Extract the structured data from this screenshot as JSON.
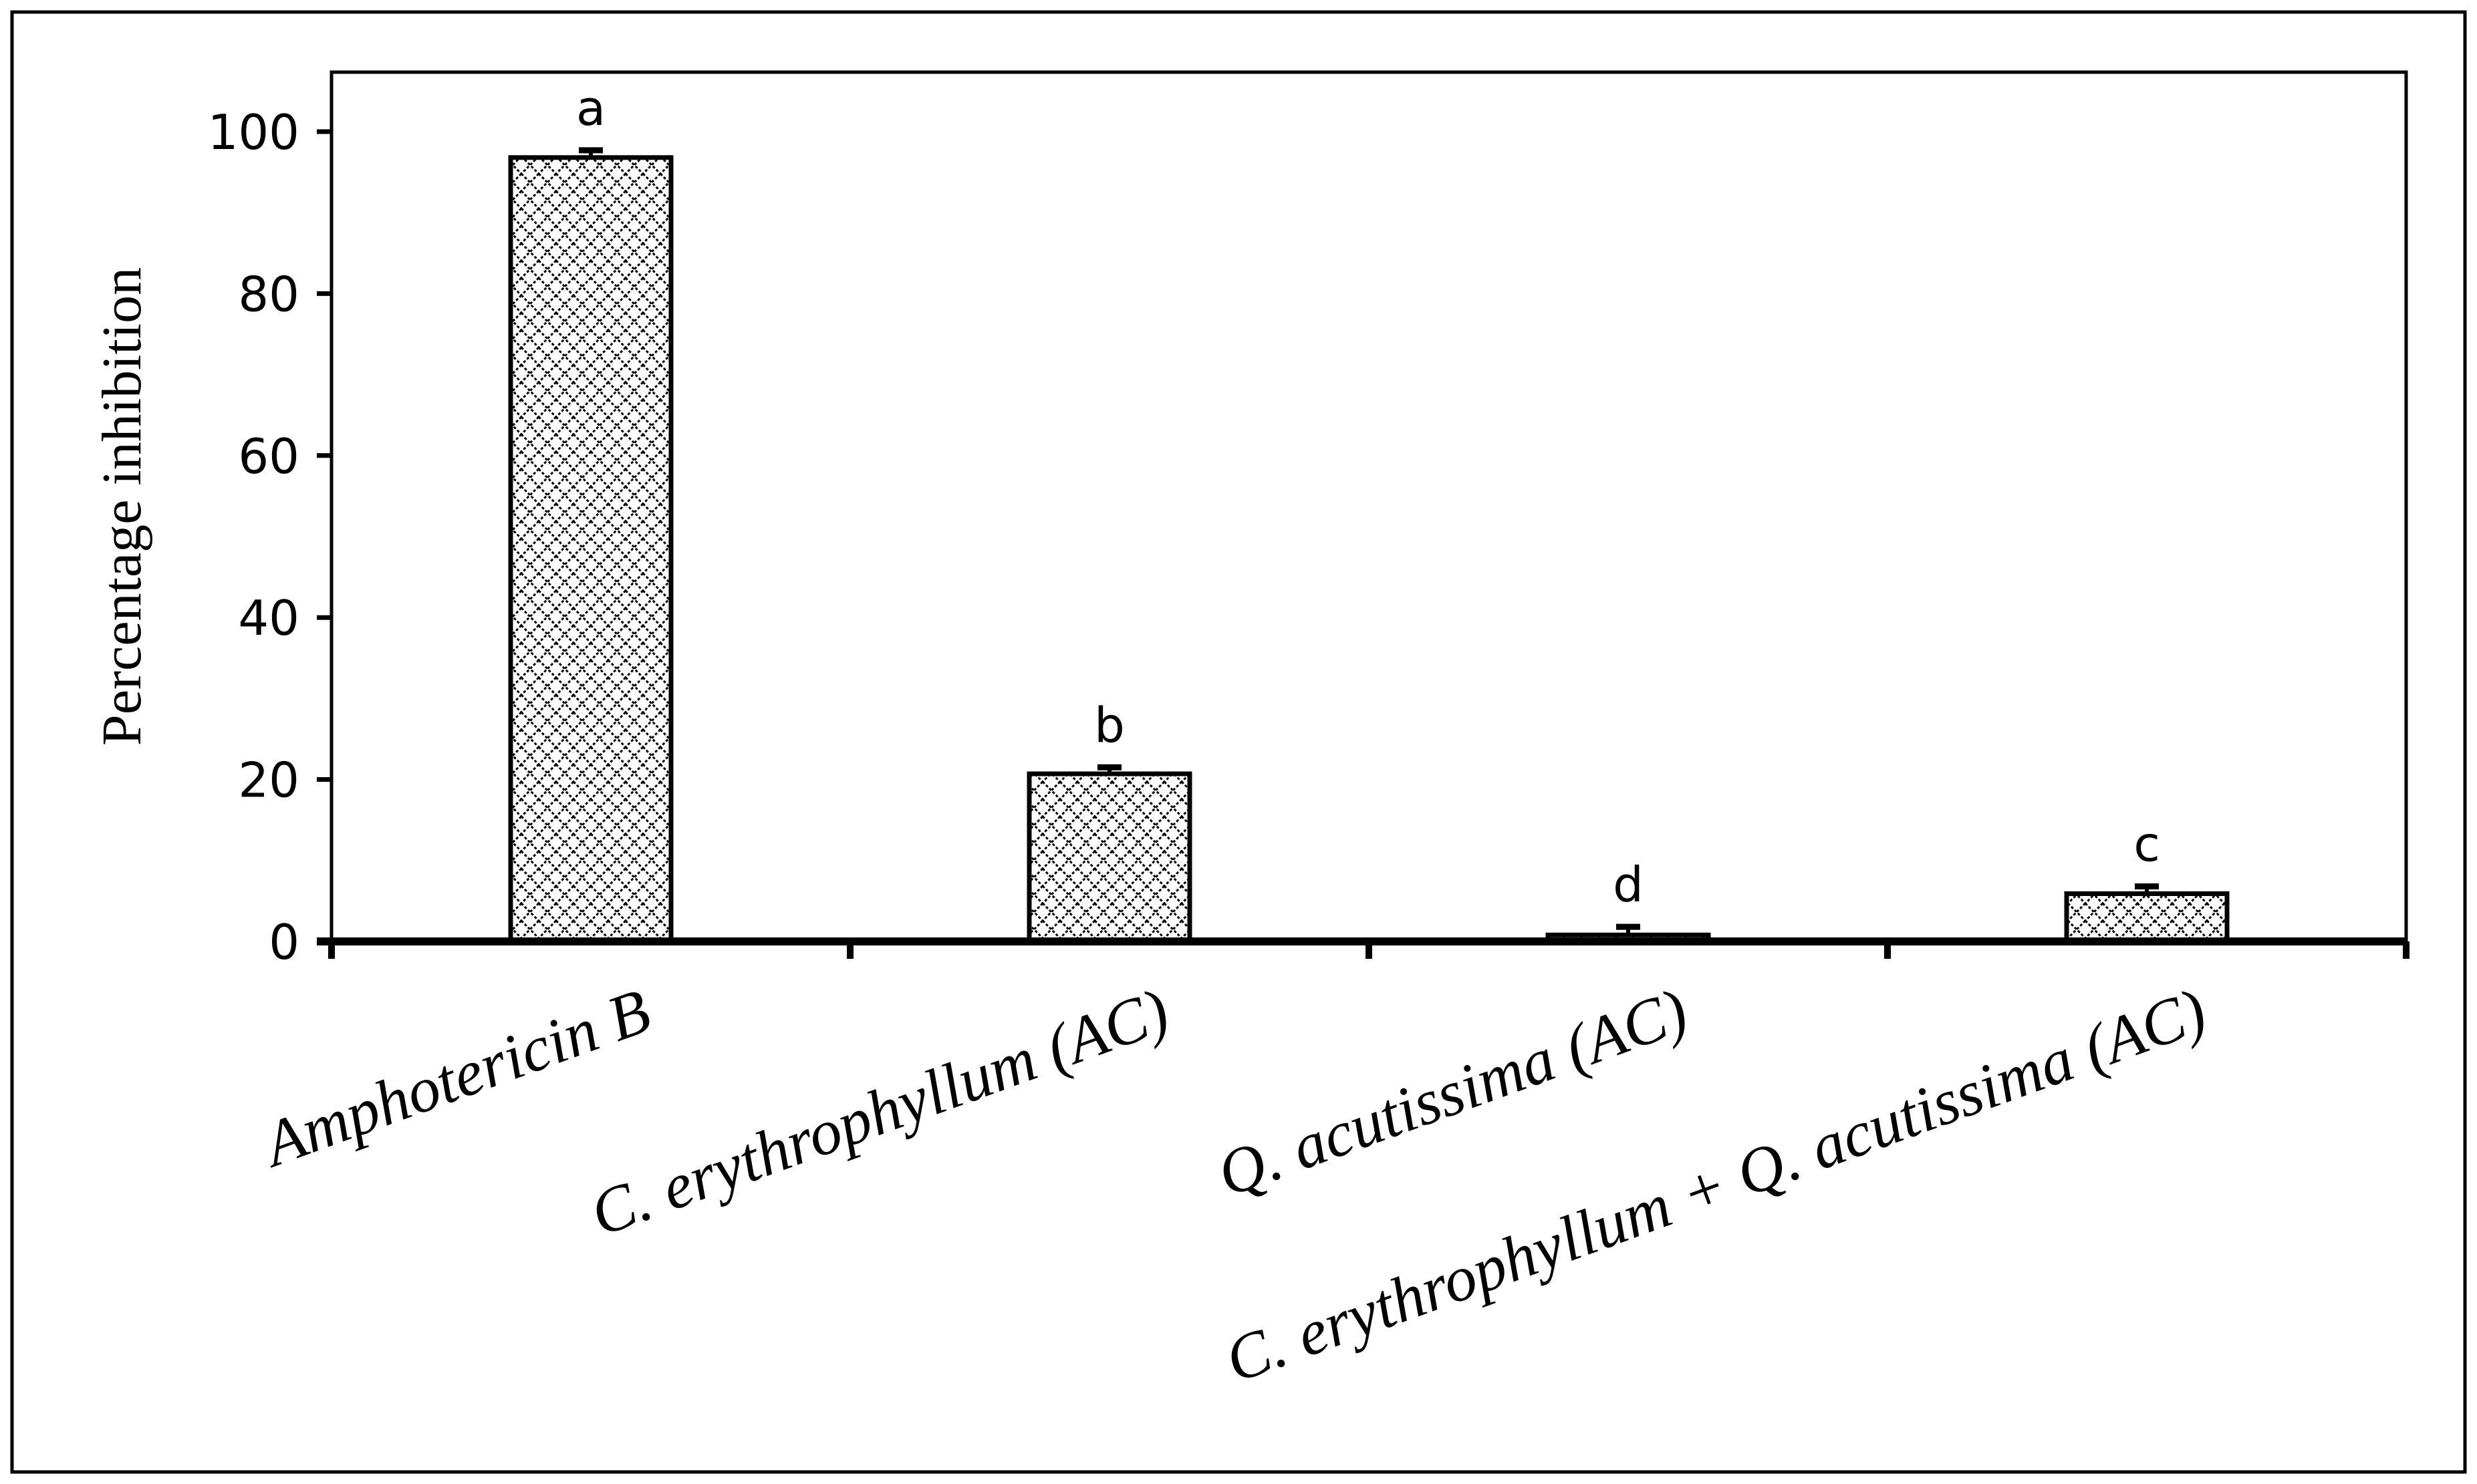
{
  "chart_data": {
    "type": "bar",
    "title": "",
    "xlabel": "",
    "ylabel": "Percentage inhibition",
    "ylim": [
      0,
      100
    ],
    "yticks": [
      0,
      20,
      40,
      60,
      80,
      100
    ],
    "grid": false,
    "legend": "none",
    "categories": [
      "Amphotericin B",
      "C. erythrophyllum (AC)",
      "Q. acutissima (AC)",
      "C. erythrophyllum + Q. acutissima (AC)"
    ],
    "values": [
      96.8,
      20.7,
      0.8,
      5.9
    ],
    "error": [
      0.9,
      0.8,
      1.0,
      0.9
    ],
    "significance_letters": [
      "a",
      "b",
      "d",
      "c"
    ],
    "bar_fill": "cross-hatch",
    "bar_color": "#000000",
    "background": "#ffffff"
  }
}
